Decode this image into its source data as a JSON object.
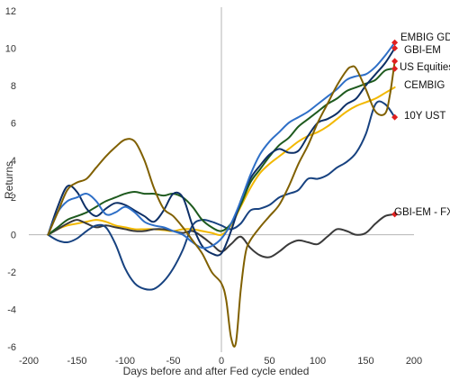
{
  "chart_data": {
    "type": "line",
    "title": "",
    "xlabel": "Days before and after Fed cycle ended",
    "ylabel": "Returns",
    "xlim": [
      -200,
      200
    ],
    "ylim": [
      -6,
      12
    ],
    "x_ticks": [
      -200,
      -150,
      -100,
      -50,
      0,
      50,
      100,
      150,
      200
    ],
    "y_ticks": [
      -6,
      -4,
      -2,
      0,
      2,
      4,
      6,
      8,
      10,
      12
    ],
    "grid": false,
    "zero_lines": true,
    "marker_color": "#e02020",
    "series": [
      {
        "name": "EMBIG GD",
        "color": "#2e6fc7",
        "points": [
          [
            -180,
            0
          ],
          [
            -170,
            1.2
          ],
          [
            -160,
            1.8
          ],
          [
            -150,
            2.0
          ],
          [
            -140,
            2.2
          ],
          [
            -130,
            1.8
          ],
          [
            -120,
            1.1
          ],
          [
            -110,
            1.2
          ],
          [
            -100,
            1.5
          ],
          [
            -90,
            1.2
          ],
          [
            -80,
            0.7
          ],
          [
            -70,
            0.5
          ],
          [
            -60,
            0.4
          ],
          [
            -50,
            0.2
          ],
          [
            -40,
            0
          ],
          [
            -30,
            -0.4
          ],
          [
            -20,
            -0.7
          ],
          [
            -10,
            -0.6
          ],
          [
            0,
            -0.2
          ],
          [
            10,
            0.6
          ],
          [
            20,
            1.8
          ],
          [
            30,
            3.2
          ],
          [
            40,
            4.3
          ],
          [
            50,
            5.0
          ],
          [
            60,
            5.5
          ],
          [
            70,
            6.0
          ],
          [
            80,
            6.3
          ],
          [
            90,
            6.6
          ],
          [
            100,
            7.0
          ],
          [
            110,
            7.4
          ],
          [
            120,
            7.8
          ],
          [
            130,
            8.3
          ],
          [
            140,
            8.5
          ],
          [
            150,
            8.6
          ],
          [
            160,
            9.0
          ],
          [
            170,
            9.6
          ],
          [
            180,
            10.3
          ]
        ]
      },
      {
        "name": "GBI-EM",
        "color": "#0d2f66",
        "points": [
          [
            -180,
            0
          ],
          [
            -170,
            1.5
          ],
          [
            -160,
            2.6
          ],
          [
            -150,
            2.3
          ],
          [
            -140,
            1.4
          ],
          [
            -130,
            1.0
          ],
          [
            -120,
            1.4
          ],
          [
            -110,
            1.7
          ],
          [
            -100,
            1.6
          ],
          [
            -90,
            1.3
          ],
          [
            -80,
            1.0
          ],
          [
            -70,
            0.7
          ],
          [
            -60,
            1.3
          ],
          [
            -50,
            2.2
          ],
          [
            -40,
            2.0
          ],
          [
            -30,
            0.5
          ],
          [
            -20,
            -0.6
          ],
          [
            -10,
            -1.0
          ],
          [
            0,
            -1.0
          ],
          [
            10,
            0.2
          ],
          [
            20,
            1.8
          ],
          [
            30,
            3.0
          ],
          [
            40,
            3.7
          ],
          [
            50,
            4.3
          ],
          [
            60,
            4.6
          ],
          [
            70,
            4.4
          ],
          [
            80,
            4.5
          ],
          [
            90,
            5.3
          ],
          [
            100,
            6.0
          ],
          [
            110,
            6.2
          ],
          [
            120,
            6.5
          ],
          [
            130,
            7.0
          ],
          [
            140,
            7.3
          ],
          [
            150,
            8.0
          ],
          [
            160,
            8.6
          ],
          [
            170,
            9.2
          ],
          [
            180,
            10.0
          ]
        ]
      },
      {
        "name": "US Equities",
        "color": "#806000",
        "points": [
          [
            -180,
            0
          ],
          [
            -170,
            1.2
          ],
          [
            -160,
            2.4
          ],
          [
            -150,
            2.8
          ],
          [
            -140,
            3.0
          ],
          [
            -130,
            3.6
          ],
          [
            -120,
            4.2
          ],
          [
            -110,
            4.7
          ],
          [
            -100,
            5.1
          ],
          [
            -90,
            5.0
          ],
          [
            -80,
            4.0
          ],
          [
            -70,
            2.5
          ],
          [
            -60,
            1.4
          ],
          [
            -50,
            1.0
          ],
          [
            -40,
            0.4
          ],
          [
            -30,
            -0.3
          ],
          [
            -20,
            -1.0
          ],
          [
            -10,
            -2.0
          ],
          [
            0,
            -2.6
          ],
          [
            5,
            -3.5
          ],
          [
            10,
            -5.5
          ],
          [
            15,
            -5.8
          ],
          [
            20,
            -3.0
          ],
          [
            25,
            -1.0
          ],
          [
            30,
            -0.3
          ],
          [
            40,
            0.4
          ],
          [
            50,
            1.0
          ],
          [
            60,
            1.6
          ],
          [
            70,
            2.6
          ],
          [
            80,
            3.8
          ],
          [
            90,
            4.8
          ],
          [
            100,
            6.0
          ],
          [
            110,
            7.0
          ],
          [
            120,
            8.0
          ],
          [
            130,
            8.8
          ],
          [
            135,
            9.0
          ],
          [
            140,
            8.9
          ],
          [
            150,
            7.8
          ],
          [
            160,
            6.6
          ],
          [
            170,
            6.5
          ],
          [
            175,
            7.5
          ],
          [
            180,
            9.3
          ]
        ]
      },
      {
        "name": "CEMBIG",
        "color": "#1e5a1e",
        "points": [
          [
            -180,
            0
          ],
          [
            -170,
            0.4
          ],
          [
            -160,
            0.8
          ],
          [
            -150,
            1.0
          ],
          [
            -140,
            1.2
          ],
          [
            -130,
            1.5
          ],
          [
            -120,
            1.8
          ],
          [
            -110,
            2.0
          ],
          [
            -100,
            2.2
          ],
          [
            -90,
            2.3
          ],
          [
            -80,
            2.2
          ],
          [
            -70,
            2.2
          ],
          [
            -60,
            2.1
          ],
          [
            -50,
            2.2
          ],
          [
            -40,
            2.0
          ],
          [
            -30,
            1.5
          ],
          [
            -20,
            0.8
          ],
          [
            -10,
            0.4
          ],
          [
            0,
            0.2
          ],
          [
            10,
            0.6
          ],
          [
            20,
            1.6
          ],
          [
            30,
            2.8
          ],
          [
            40,
            3.5
          ],
          [
            50,
            4.2
          ],
          [
            60,
            4.8
          ],
          [
            70,
            5.2
          ],
          [
            80,
            5.8
          ],
          [
            90,
            6.2
          ],
          [
            100,
            6.6
          ],
          [
            110,
            7.0
          ],
          [
            120,
            7.3
          ],
          [
            130,
            7.7
          ],
          [
            140,
            7.9
          ],
          [
            150,
            8.1
          ],
          [
            160,
            8.3
          ],
          [
            170,
            8.8
          ],
          [
            180,
            8.9
          ]
        ]
      },
      {
        "name": "10Y UST",
        "color": "#174280",
        "points": [
          [
            -180,
            0
          ],
          [
            -170,
            -0.3
          ],
          [
            -160,
            -0.4
          ],
          [
            -150,
            -0.2
          ],
          [
            -140,
            0.2
          ],
          [
            -130,
            0.5
          ],
          [
            -120,
            0.4
          ],
          [
            -110,
            -0.5
          ],
          [
            -100,
            -1.8
          ],
          [
            -90,
            -2.6
          ],
          [
            -80,
            -2.9
          ],
          [
            -70,
            -2.9
          ],
          [
            -60,
            -2.5
          ],
          [
            -50,
            -1.8
          ],
          [
            -40,
            -0.8
          ],
          [
            -30,
            0.5
          ],
          [
            -20,
            0.8
          ],
          [
            -10,
            0.7
          ],
          [
            0,
            0.5
          ],
          [
            10,
            0.3
          ],
          [
            20,
            0.6
          ],
          [
            30,
            1.3
          ],
          [
            40,
            1.4
          ],
          [
            50,
            1.6
          ],
          [
            60,
            2.0
          ],
          [
            70,
            2.2
          ],
          [
            80,
            2.4
          ],
          [
            90,
            3.0
          ],
          [
            100,
            3.0
          ],
          [
            110,
            3.2
          ],
          [
            120,
            3.6
          ],
          [
            130,
            3.9
          ],
          [
            140,
            4.4
          ],
          [
            150,
            5.4
          ],
          [
            160,
            7.0
          ],
          [
            170,
            7.0
          ],
          [
            180,
            6.3
          ]
        ]
      },
      {
        "name": "GBI-EM -  FX",
        "color": "#3a3a3a",
        "points": [
          [
            -180,
            0
          ],
          [
            -170,
            0.3
          ],
          [
            -160,
            0.6
          ],
          [
            -150,
            0.8
          ],
          [
            -140,
            0.6
          ],
          [
            -130,
            0.4
          ],
          [
            -120,
            0.5
          ],
          [
            -110,
            0.4
          ],
          [
            -100,
            0.3
          ],
          [
            -90,
            0.2
          ],
          [
            -80,
            0.2
          ],
          [
            -70,
            0.3
          ],
          [
            -60,
            0.3
          ],
          [
            -50,
            0.2
          ],
          [
            -40,
            0.1
          ],
          [
            -30,
            0.2
          ],
          [
            -20,
            -0.1
          ],
          [
            -10,
            -0.5
          ],
          [
            0,
            -0.9
          ],
          [
            10,
            -0.5
          ],
          [
            20,
            -0.1
          ],
          [
            30,
            -0.7
          ],
          [
            40,
            -1.1
          ],
          [
            50,
            -1.2
          ],
          [
            60,
            -0.9
          ],
          [
            70,
            -0.5
          ],
          [
            80,
            -0.3
          ],
          [
            90,
            -0.4
          ],
          [
            100,
            -0.5
          ],
          [
            110,
            -0.1
          ],
          [
            120,
            0.3
          ],
          [
            130,
            0.2
          ],
          [
            140,
            0.0
          ],
          [
            150,
            0.1
          ],
          [
            160,
            0.6
          ],
          [
            170,
            1.0
          ],
          [
            180,
            1.1
          ]
        ]
      },
      {
        "name": "",
        "color": "#f2b800",
        "points": [
          [
            -180,
            0
          ],
          [
            -170,
            0.3
          ],
          [
            -160,
            0.5
          ],
          [
            -150,
            0.6
          ],
          [
            -140,
            0.7
          ],
          [
            -130,
            0.8
          ],
          [
            -120,
            0.7
          ],
          [
            -110,
            0.5
          ],
          [
            -100,
            0.4
          ],
          [
            -90,
            0.3
          ],
          [
            -80,
            0.3
          ],
          [
            -70,
            0.3
          ],
          [
            -60,
            0.25
          ],
          [
            -50,
            0.2
          ],
          [
            -40,
            0.3
          ],
          [
            -30,
            0.3
          ],
          [
            -20,
            0.2
          ],
          [
            -10,
            0.1
          ],
          [
            0,
            0
          ],
          [
            10,
            0.5
          ],
          [
            20,
            1.5
          ],
          [
            30,
            2.5
          ],
          [
            40,
            3.3
          ],
          [
            50,
            3.8
          ],
          [
            60,
            4.2
          ],
          [
            70,
            4.6
          ],
          [
            80,
            5.0
          ],
          [
            90,
            5.3
          ],
          [
            100,
            5.5
          ],
          [
            110,
            5.8
          ],
          [
            120,
            6.2
          ],
          [
            130,
            6.6
          ],
          [
            140,
            6.9
          ],
          [
            150,
            7.1
          ],
          [
            160,
            7.3
          ],
          [
            170,
            7.6
          ],
          [
            180,
            7.9
          ]
        ]
      }
    ],
    "end_labels": [
      "EMBIG GD",
      "GBI-EM",
      "US Equities",
      "CEMBIG",
      "10Y UST",
      "GBI-EM -  FX"
    ]
  }
}
